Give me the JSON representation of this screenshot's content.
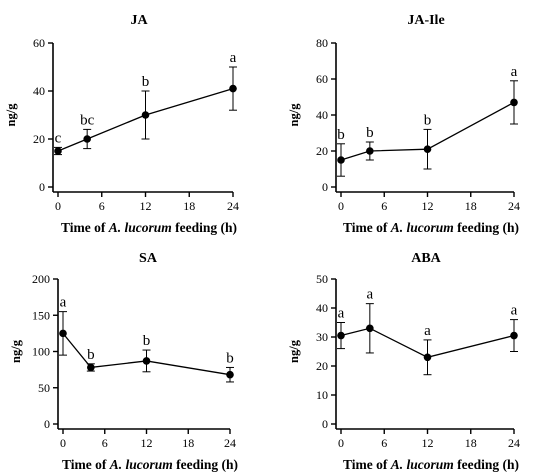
{
  "chart_data": [
    {
      "type": "line",
      "title": "JA",
      "xlabel_parts": [
        "Time of ",
        "A. lucorum",
        " feeding (h)"
      ],
      "ylabel": "ng/g",
      "xticks": [
        0,
        6,
        12,
        18,
        24
      ],
      "yticks": [
        0,
        20,
        40,
        60
      ],
      "xlim": [
        0,
        24
      ],
      "ylim": [
        0,
        60
      ],
      "series": [
        {
          "x": [
            0,
            4,
            12,
            24
          ],
          "y": [
            15,
            20,
            30,
            41
          ],
          "err": [
            1.5,
            4,
            10,
            9
          ],
          "labels": [
            "c",
            "bc",
            "b",
            "a"
          ]
        }
      ]
    },
    {
      "type": "line",
      "title": "JA-Ile",
      "xlabel_parts": [
        "Time of ",
        "A. lucorum",
        " feeding (h)"
      ],
      "ylabel": "ng/g",
      "xticks": [
        0,
        6,
        12,
        18,
        24
      ],
      "yticks": [
        0,
        20,
        40,
        60,
        80
      ],
      "xlim": [
        0,
        24
      ],
      "ylim": [
        0,
        80
      ],
      "series": [
        {
          "x": [
            0,
            4,
            12,
            24
          ],
          "y": [
            15,
            20,
            21,
            47
          ],
          "err": [
            9,
            5,
            11,
            12
          ],
          "labels": [
            "b",
            "b",
            "b",
            "a"
          ]
        }
      ]
    },
    {
      "type": "line",
      "title": "SA",
      "xlabel_parts": [
        "Time of ",
        "A. lucorum",
        " feeding (h)"
      ],
      "ylabel": "ng/g",
      "xticks": [
        0,
        6,
        12,
        18,
        24
      ],
      "yticks": [
        0,
        50,
        100,
        150,
        200
      ],
      "xlim": [
        0,
        24
      ],
      "ylim": [
        0,
        200
      ],
      "series": [
        {
          "x": [
            0,
            4,
            12,
            24
          ],
          "y": [
            125,
            78,
            87,
            68
          ],
          "err": [
            30,
            5,
            15,
            10
          ],
          "labels": [
            "a",
            "b",
            "b",
            "b"
          ]
        }
      ]
    },
    {
      "type": "line",
      "title": "ABA",
      "xlabel_parts": [
        "Time of ",
        "A. lucorum",
        " feeding (h)"
      ],
      "ylabel": "ng/g",
      "xticks": [
        0,
        6,
        12,
        18,
        24
      ],
      "yticks": [
        0,
        10,
        20,
        30,
        40,
        50
      ],
      "xlim": [
        0,
        24
      ],
      "ylim": [
        0,
        50
      ],
      "series": [
        {
          "x": [
            0,
            4,
            12,
            24
          ],
          "y": [
            30.5,
            33,
            23,
            30.5
          ],
          "err": [
            4.5,
            8.5,
            6,
            5.5
          ],
          "labels": [
            "a",
            "a",
            "a",
            "a"
          ]
        }
      ]
    }
  ]
}
